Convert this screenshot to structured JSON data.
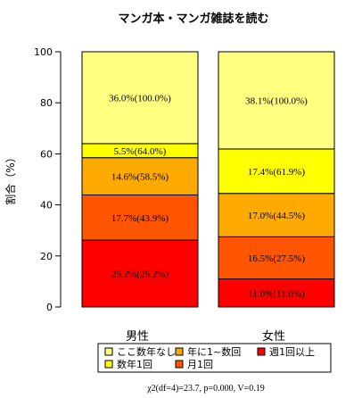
{
  "chart_data": {
    "type": "bar",
    "stacked": true,
    "title": "マンガ本・マンガ雑誌を読む",
    "ylabel": "割合（%）",
    "ylim": [
      0,
      100
    ],
    "yticks": [
      0,
      20,
      40,
      60,
      80,
      100
    ],
    "categories": [
      "男性",
      "女性"
    ],
    "series": [
      {
        "name": "週1回以上",
        "color": "#FF0000",
        "values": [
          26.2,
          11.0
        ],
        "labels": [
          "26.2%(26.2%)",
          "11.0%(11.0%)"
        ]
      },
      {
        "name": "月1回",
        "color": "#FF5500",
        "values": [
          17.7,
          16.5
        ],
        "labels": [
          "17.7%(43.9%)",
          "16.5%(27.5%)"
        ]
      },
      {
        "name": "年に1~数回",
        "color": "#FFAA00",
        "values": [
          14.6,
          17.0
        ],
        "labels": [
          "14.6%(58.5%)",
          "17.0%(44.5%)"
        ]
      },
      {
        "name": "数年1回",
        "color": "#FFFF00",
        "values": [
          5.5,
          17.4
        ],
        "labels": [
          "5.5%(64.0%)",
          "17.4%(61.9%)"
        ]
      },
      {
        "name": "ここ数年なし",
        "color": "#FFFF80",
        "values": [
          36.0,
          38.1
        ],
        "labels": [
          "36.0%(100.0%)",
          "38.1%(100.0%)"
        ]
      }
    ],
    "legend": {
      "placement": "bottom",
      "order": [
        "ここ数年なし",
        "年に1~数回",
        "週1回以上",
        "数年1回",
        "月1回"
      ]
    },
    "footnote": "χ2(df=4)=23.7, p=0.000, V=0.19",
    "grid": false
  }
}
